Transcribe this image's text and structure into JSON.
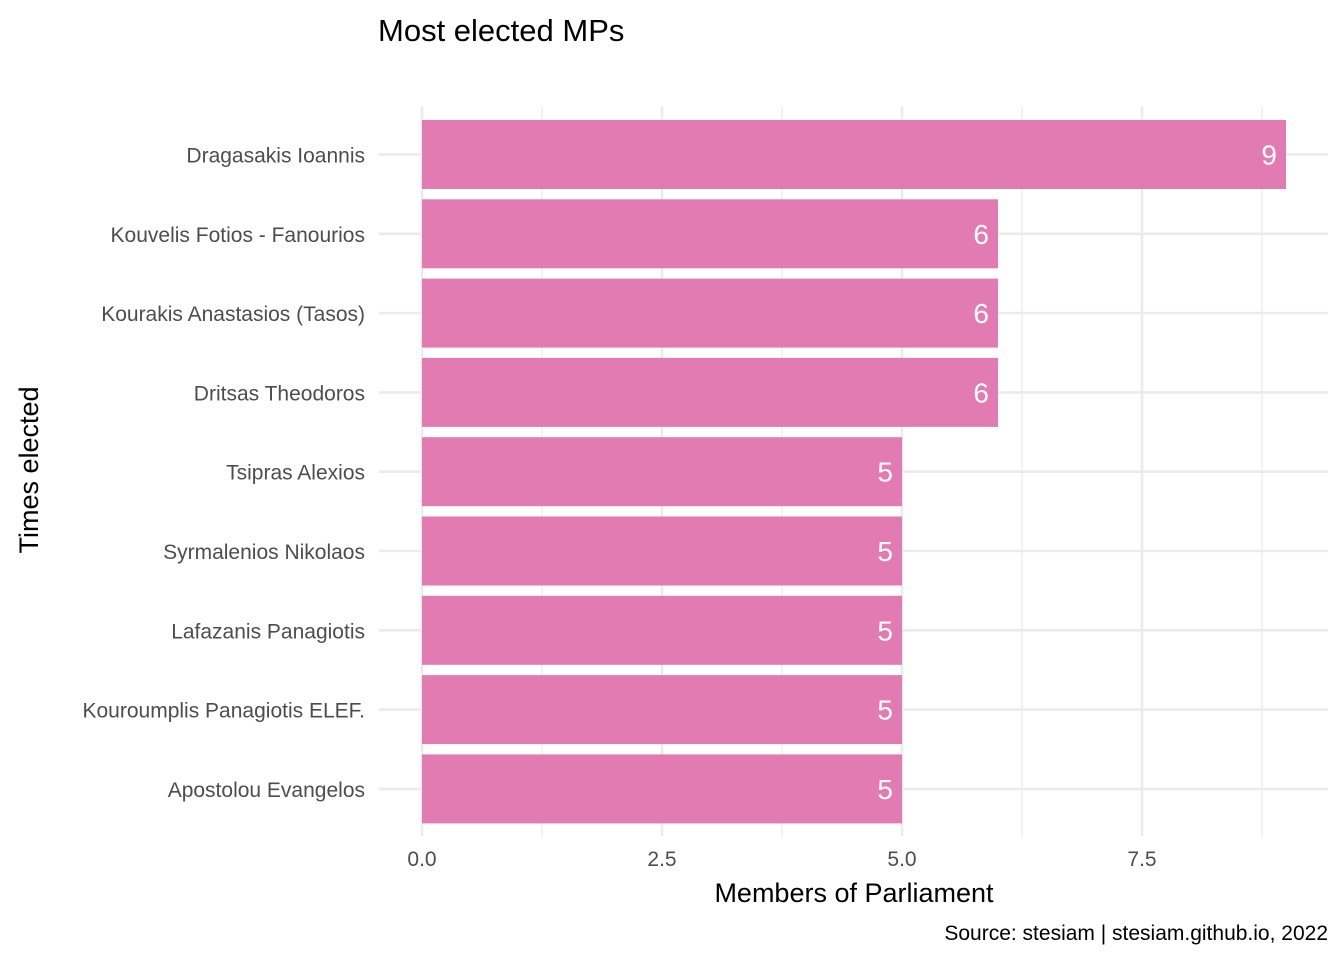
{
  "chart_data": {
    "type": "bar",
    "orientation": "horizontal",
    "title": "Most elected MPs",
    "xlabel": "Members of Parliament",
    "ylabel": "Times elected",
    "caption": "Source: stesiam | stesiam.github.io, 2022",
    "categories": [
      "Dragasakis Ioannis",
      "Kouvelis Fotios - Fanourios",
      "Kourakis Anastasios (Tasos)",
      "Dritsas Theodoros",
      "Tsipras Alexios",
      "Syrmalenios Nikolaos",
      "Lafazanis Panagiotis",
      "Kouroumplis Panagiotis ELEF.",
      "Apostolou Evangelos"
    ],
    "values": [
      9,
      6,
      6,
      6,
      5,
      5,
      5,
      5,
      5
    ],
    "x_ticks": [
      "0.0",
      "2.5",
      "5.0",
      "7.5"
    ],
    "xlim": [
      0,
      9
    ],
    "bar_color": "#e17bb1",
    "grid": true,
    "legend": "none"
  }
}
